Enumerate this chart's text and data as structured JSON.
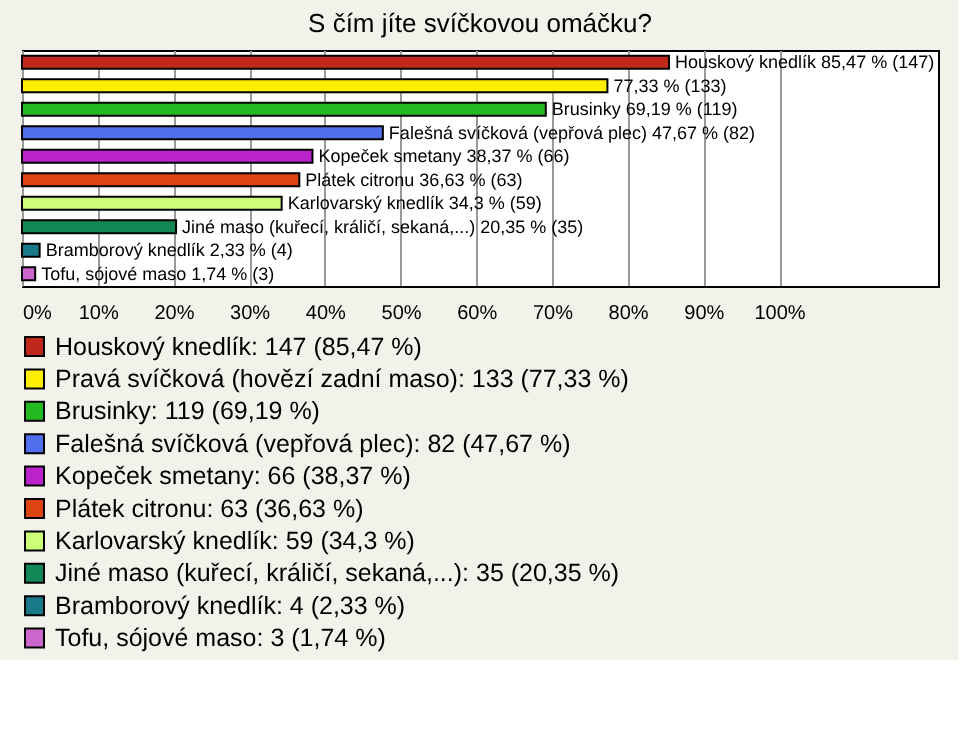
{
  "chart_data": {
    "type": "bar",
    "orientation": "horizontal",
    "title": "S čím jíte svíčkovou omáčku?",
    "categories": [
      null,
      null,
      null,
      null,
      null,
      null,
      null,
      null,
      null,
      null
    ],
    "series": [
      {
        "name": "Houskový knedlík: 147 (85,47 %)",
        "color": "#c0281c",
        "values": [
          85.47,
          null,
          null,
          null,
          null,
          null,
          null,
          null,
          null,
          null
        ],
        "value_labels": [
          "Houskový knedlík 85,47 % (147)",
          null,
          null,
          null,
          null,
          null,
          null,
          null,
          null,
          null
        ]
      },
      {
        "name": "Pravá svíčková (hovězí zadní maso): 133 (77,33 %)",
        "color": "#ffee00",
        "values": [
          null,
          77.33,
          null,
          null,
          null,
          null,
          null,
          null,
          null,
          null
        ],
        "value_labels": [
          null,
          "77,33 % (133)",
          null,
          null,
          null,
          null,
          null,
          null,
          null,
          null
        ]
      },
      {
        "name": "Brusinky: 119 (69,19 %)",
        "color": "#22bb22",
        "values": [
          null,
          null,
          69.19,
          null,
          null,
          null,
          null,
          null,
          null,
          null
        ],
        "value_labels": [
          null,
          null,
          "Brusinky 69,19 % (119)",
          null,
          null,
          null,
          null,
          null,
          null,
          null
        ]
      },
      {
        "name": "Falešná svíčková (vepřová plec): 82 (47,67 %)",
        "color": "#4f6fef",
        "values": [
          null,
          null,
          null,
          47.67,
          null,
          null,
          null,
          null,
          null,
          null
        ],
        "value_labels": [
          null,
          null,
          null,
          "Falešná svíčková (vepřová plec) 47,67 % (82)",
          null,
          null,
          null,
          null,
          null,
          null
        ]
      },
      {
        "name": "Kopeček smetany: 66 (38,37 %)",
        "color": "#bb22cc",
        "values": [
          null,
          null,
          null,
          null,
          38.37,
          null,
          null,
          null,
          null,
          null
        ],
        "value_labels": [
          null,
          null,
          null,
          null,
          "Kopeček smetany 38,37 % (66)",
          null,
          null,
          null,
          null,
          null
        ]
      },
      {
        "name": "Plátek citronu: 63 (36,63 %)",
        "color": "#dd4411",
        "values": [
          null,
          null,
          null,
          null,
          null,
          36.63,
          null,
          null,
          null,
          null
        ],
        "value_labels": [
          null,
          null,
          null,
          null,
          null,
          "Plátek citronu 36,63 % (63)",
          null,
          null,
          null,
          null
        ]
      },
      {
        "name": "Karlovarský knedlík: 59 (34,3 %)",
        "color": "#ccff77",
        "values": [
          null,
          null,
          null,
          null,
          null,
          null,
          34.3,
          null,
          null,
          null
        ],
        "value_labels": [
          null,
          null,
          null,
          null,
          null,
          null,
          "Karlovarský knedlík 34,3 % (59)",
          null,
          null,
          null
        ]
      },
      {
        "name": "Jiné maso (kuřecí, králičí, sekaná,...): 35 (20,35 %)",
        "color": "#118855",
        "values": [
          null,
          null,
          null,
          null,
          null,
          null,
          null,
          20.35,
          null,
          null
        ],
        "value_labels": [
          null,
          null,
          null,
          null,
          null,
          null,
          null,
          "Jiné maso (kuřecí, králičí, sekaná,...) 20,35 % (35)",
          null,
          null
        ]
      },
      {
        "name": "Bramborový knedlík: 4 (2,33 %)",
        "color": "#1a7a8a",
        "values": [
          null,
          null,
          null,
          null,
          null,
          null,
          null,
          null,
          2.33,
          null
        ],
        "value_labels": [
          null,
          null,
          null,
          null,
          null,
          null,
          null,
          null,
          "Bramborový knedlík 2,33 % (4)",
          null
        ]
      },
      {
        "name": "Tofu, sójové maso: 3 (1,74 %)",
        "color": "#cc66cc",
        "values": [
          null,
          null,
          null,
          null,
          null,
          null,
          null,
          null,
          null,
          1.74
        ],
        "value_labels": [
          null,
          null,
          null,
          null,
          null,
          null,
          null,
          null,
          null,
          "Tofu, sójové maso 1,74 % (3)"
        ]
      }
    ],
    "xlim": [
      0,
      121
    ],
    "xticks": [
      {
        "value": 0,
        "label": "0%"
      },
      {
        "value": 10,
        "label": "10%"
      },
      {
        "value": 20,
        "label": "20%"
      },
      {
        "value": 30,
        "label": "30%"
      },
      {
        "value": 40,
        "label": "40%"
      },
      {
        "value": 50,
        "label": "50%"
      },
      {
        "value": 60,
        "label": "60%"
      },
      {
        "value": 70,
        "label": "70%"
      },
      {
        "value": 80,
        "label": "80%"
      },
      {
        "value": 90,
        "label": "90%"
      },
      {
        "value": 100,
        "label": "100%"
      }
    ],
    "grid": "x",
    "legend": "bottom",
    "tick_labels": "x"
  }
}
